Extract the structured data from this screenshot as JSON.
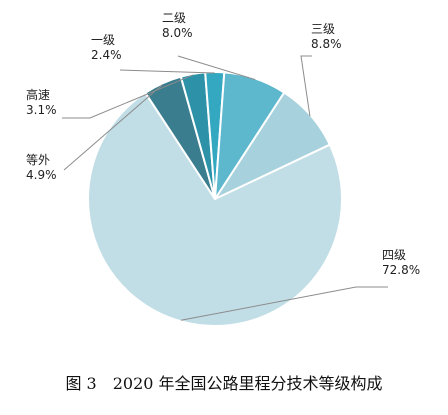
{
  "figure": {
    "caption": "图 3　2020 年全国公路里程分技术等级构成"
  },
  "chart_data": {
    "type": "pie",
    "title": "",
    "slices": [
      {
        "label": "三级",
        "percent_label": "8.8%",
        "value": 8.8,
        "color": "#a7d1dc"
      },
      {
        "label": "四级",
        "percent_label": "72.8%",
        "value": 72.8,
        "color": "#c1dee7"
      },
      {
        "label": "等外",
        "percent_label": "4.9%",
        "value": 4.9,
        "color": "#3a7d8e"
      },
      {
        "label": "高速",
        "percent_label": "3.1%",
        "value": 3.1,
        "color": "#2d92a8"
      },
      {
        "label": "一级",
        "percent_label": "2.4%",
        "value": 2.4,
        "color": "#34a8c0"
      },
      {
        "label": "二级",
        "percent_label": "8.0%",
        "value": 8.0,
        "color": "#5db7cd"
      }
    ],
    "slice_border_color": "#ffffff",
    "legend": "none"
  }
}
